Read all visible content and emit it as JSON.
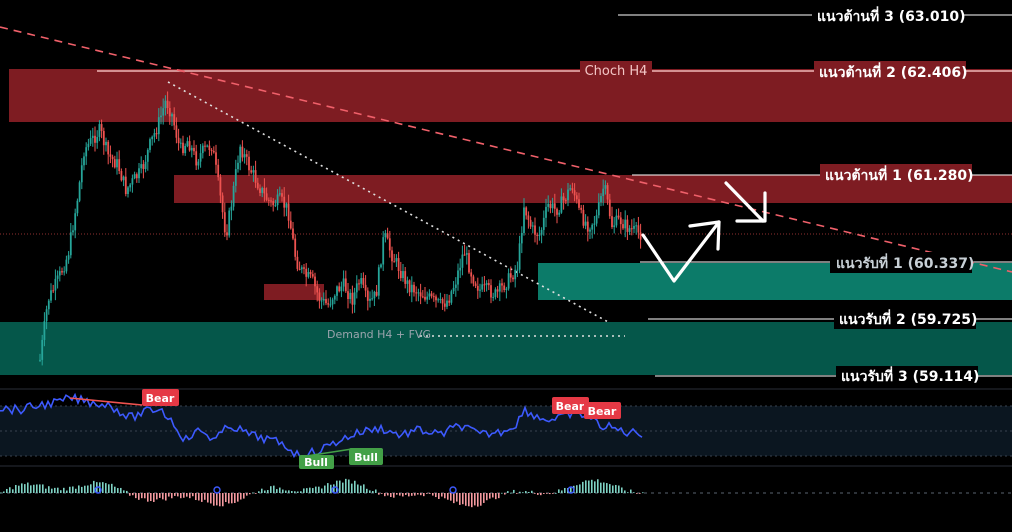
{
  "chart_data": {
    "type": "candlestick",
    "price_levels": [
      {
        "id": "res3",
        "label": "แนวต้านที่ 3 (63.010)",
        "price": 63.01,
        "kind": "resistance"
      },
      {
        "id": "res2",
        "label": "แนวต้านที่ 2 (62.406)",
        "price": 62.406,
        "kind": "resistance"
      },
      {
        "id": "res1",
        "label": "แนวต้านที่ 1 (61.280)",
        "price": 61.28,
        "kind": "resistance"
      },
      {
        "id": "sup1",
        "label": "แนวรับที่ 1 (60.337)",
        "price": 60.337,
        "kind": "support"
      },
      {
        "id": "sup2",
        "label": "แนวรับที่ 2 (59.725)",
        "price": 59.725,
        "kind": "support"
      },
      {
        "id": "sup3",
        "label": "แนวรับที่ 3 (59.114)",
        "price": 59.114,
        "kind": "support"
      }
    ],
    "annotations": {
      "choch": "Choch H4",
      "demand": "Demand H4 + FVG"
    },
    "rsi_tags": [
      {
        "text": "Bear"
      },
      {
        "text": "Bull"
      },
      {
        "text": "Bull"
      },
      {
        "text": "Bear"
      },
      {
        "text": "Bear"
      }
    ],
    "colors": {
      "bull": "#26a69a",
      "bear": "#ef5350",
      "supply_zone": "#7e1c22",
      "demand_zone": "#0c7b69",
      "demand_zone_dark": "#05574a",
      "rsi_line": "#3d5afe",
      "bear_tag": "#e53945",
      "bull_tag": "#43a047"
    }
  }
}
